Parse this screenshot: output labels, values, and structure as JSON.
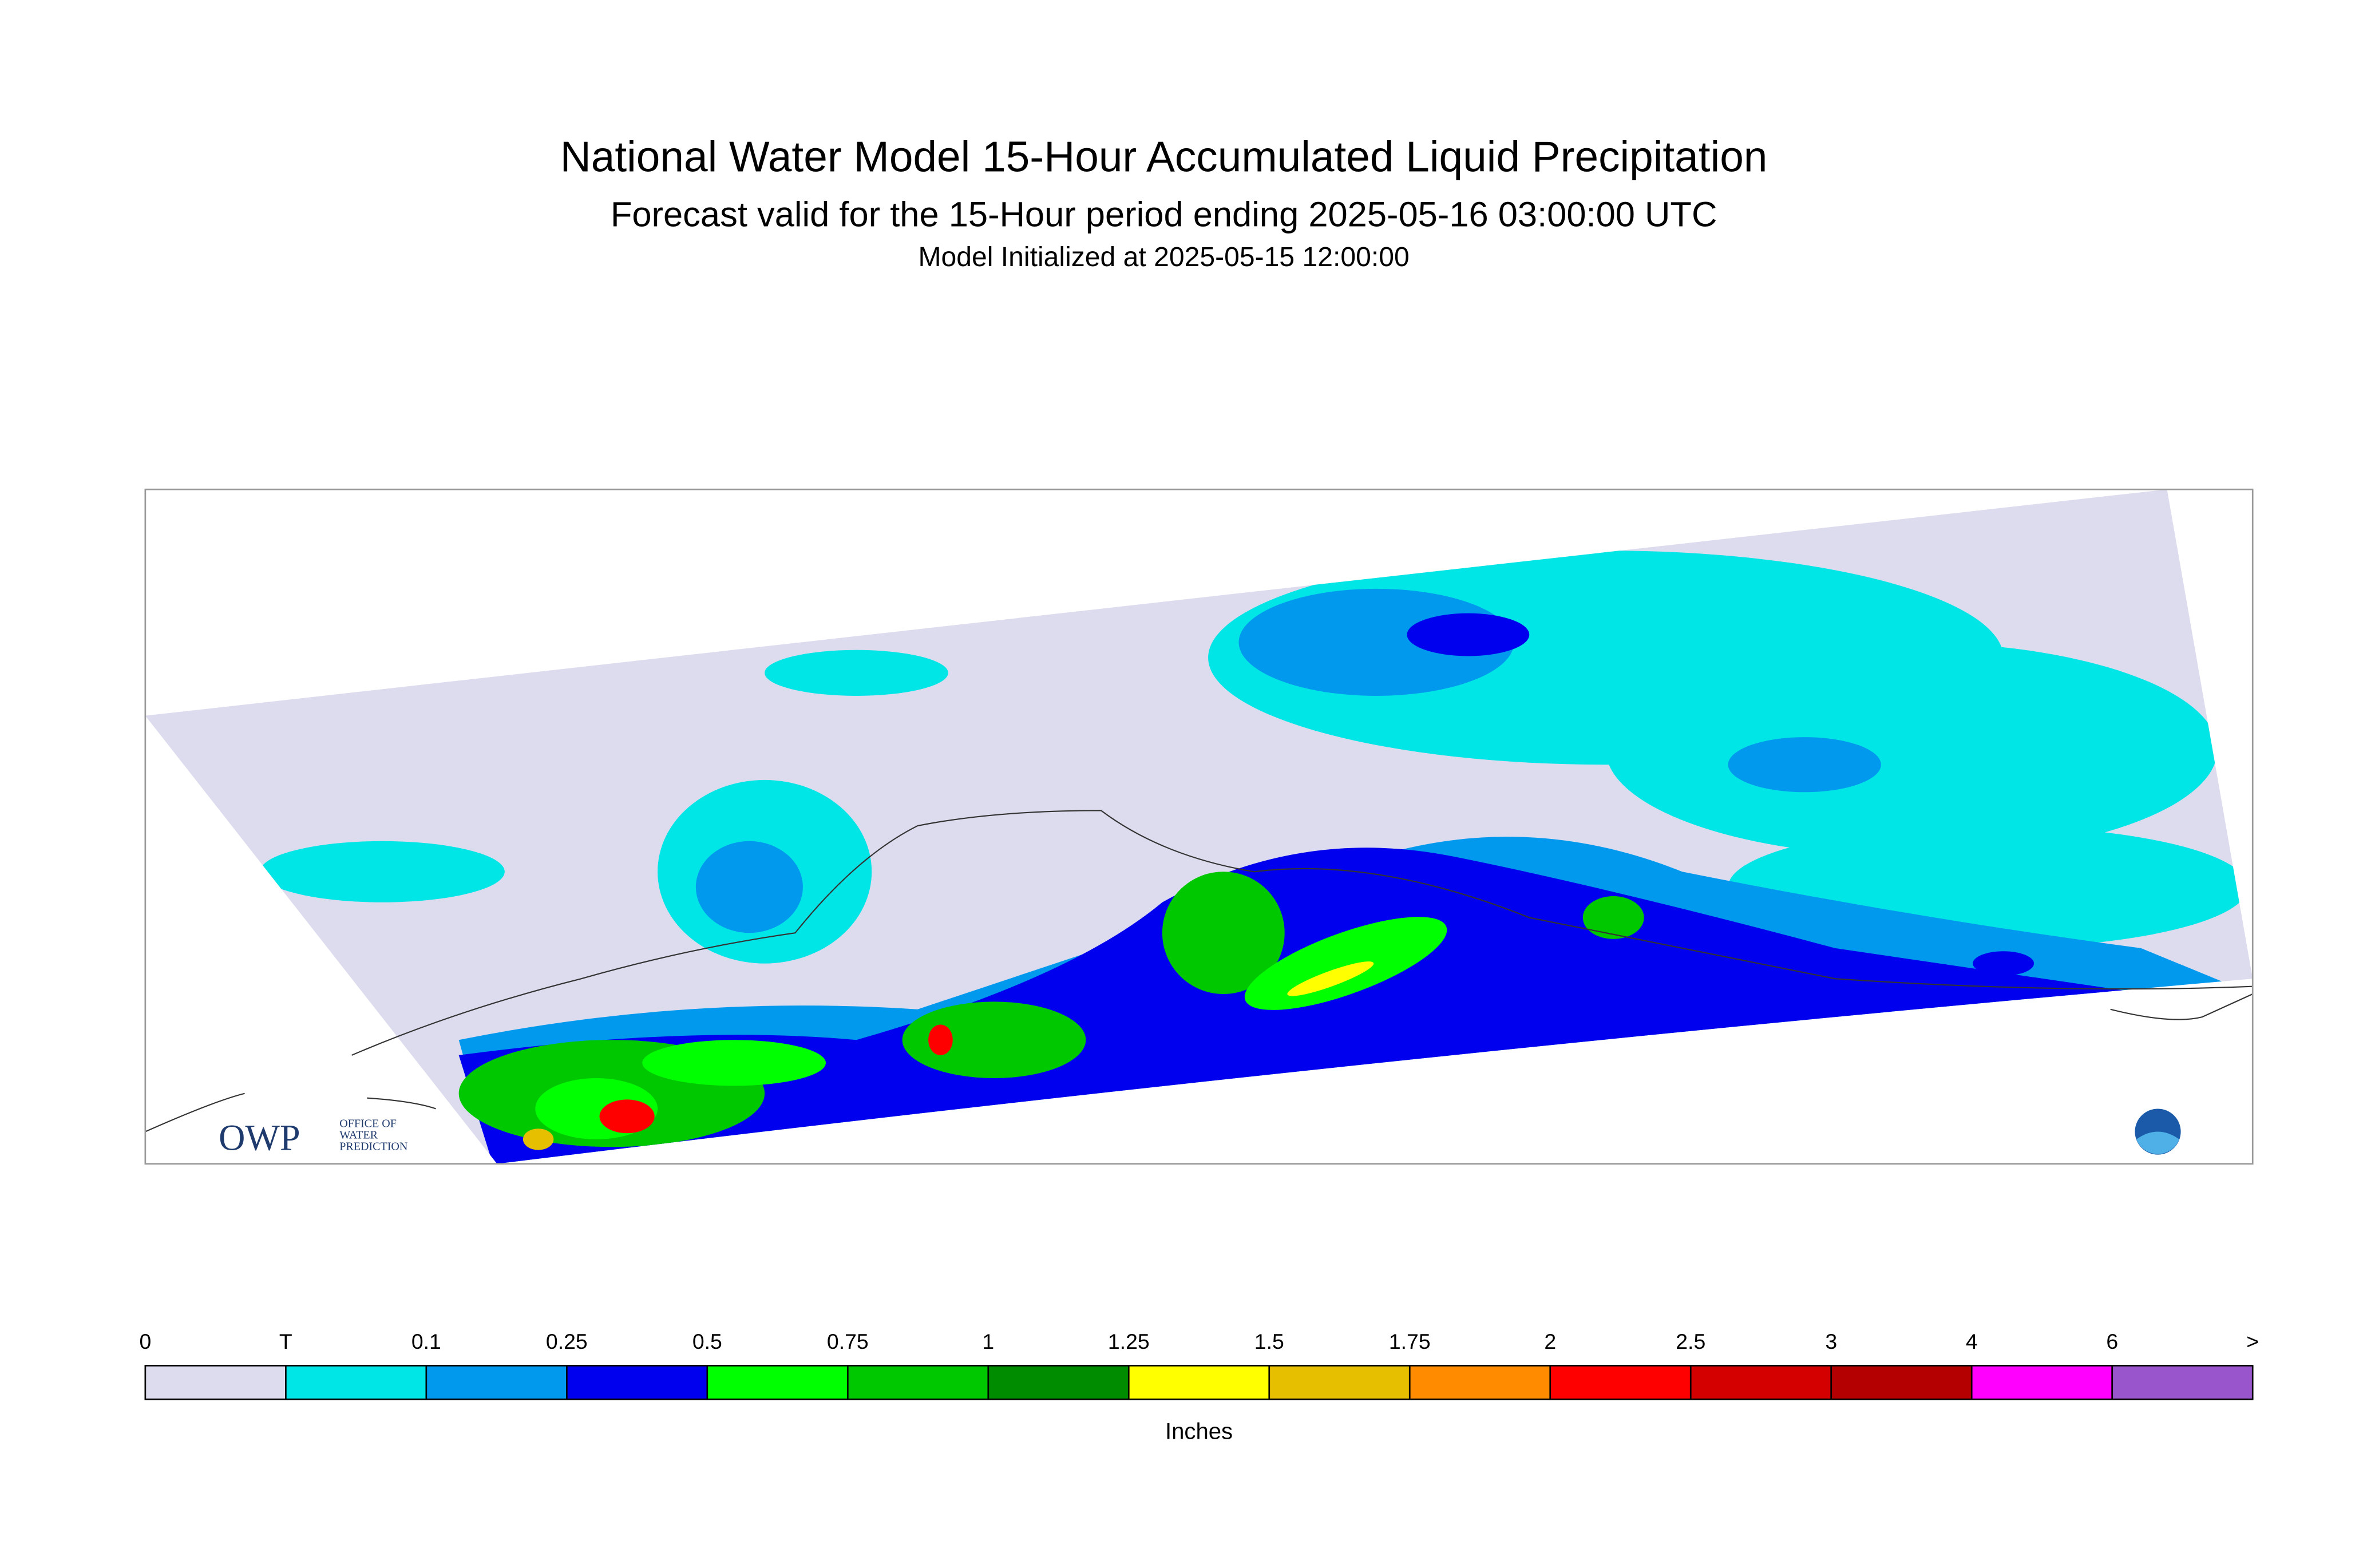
{
  "header": {
    "title": "National Water Model 15-Hour Accumulated Liquid Precipitation",
    "subtitle": "Forecast valid for the 15-Hour period ending 2025-05-16 03:00:00 UTC",
    "initialized": "Model Initialized at 2025-05-15 12:00:00"
  },
  "logo": {
    "name": "OWP",
    "lines": [
      "OFFICE OF",
      "WATER",
      "PREDICTION"
    ]
  },
  "legend": {
    "labels": [
      "0",
      "T",
      "0.1",
      "0.25",
      "0.5",
      "0.75",
      "1",
      "1.25",
      "1.5",
      "1.75",
      "2",
      "2.5",
      "3",
      "4",
      "6",
      ">"
    ],
    "colors": [
      "#dcdcee",
      "#00e5e5",
      "#0099ee",
      "#0000ee",
      "#00ff00",
      "#00c800",
      "#008c00",
      "#ffff00",
      "#e6c000",
      "#ff8c00",
      "#ff0000",
      "#d40000",
      "#b40000",
      "#ff00ff",
      "#9955cc"
    ],
    "unit": "Inches"
  }
}
